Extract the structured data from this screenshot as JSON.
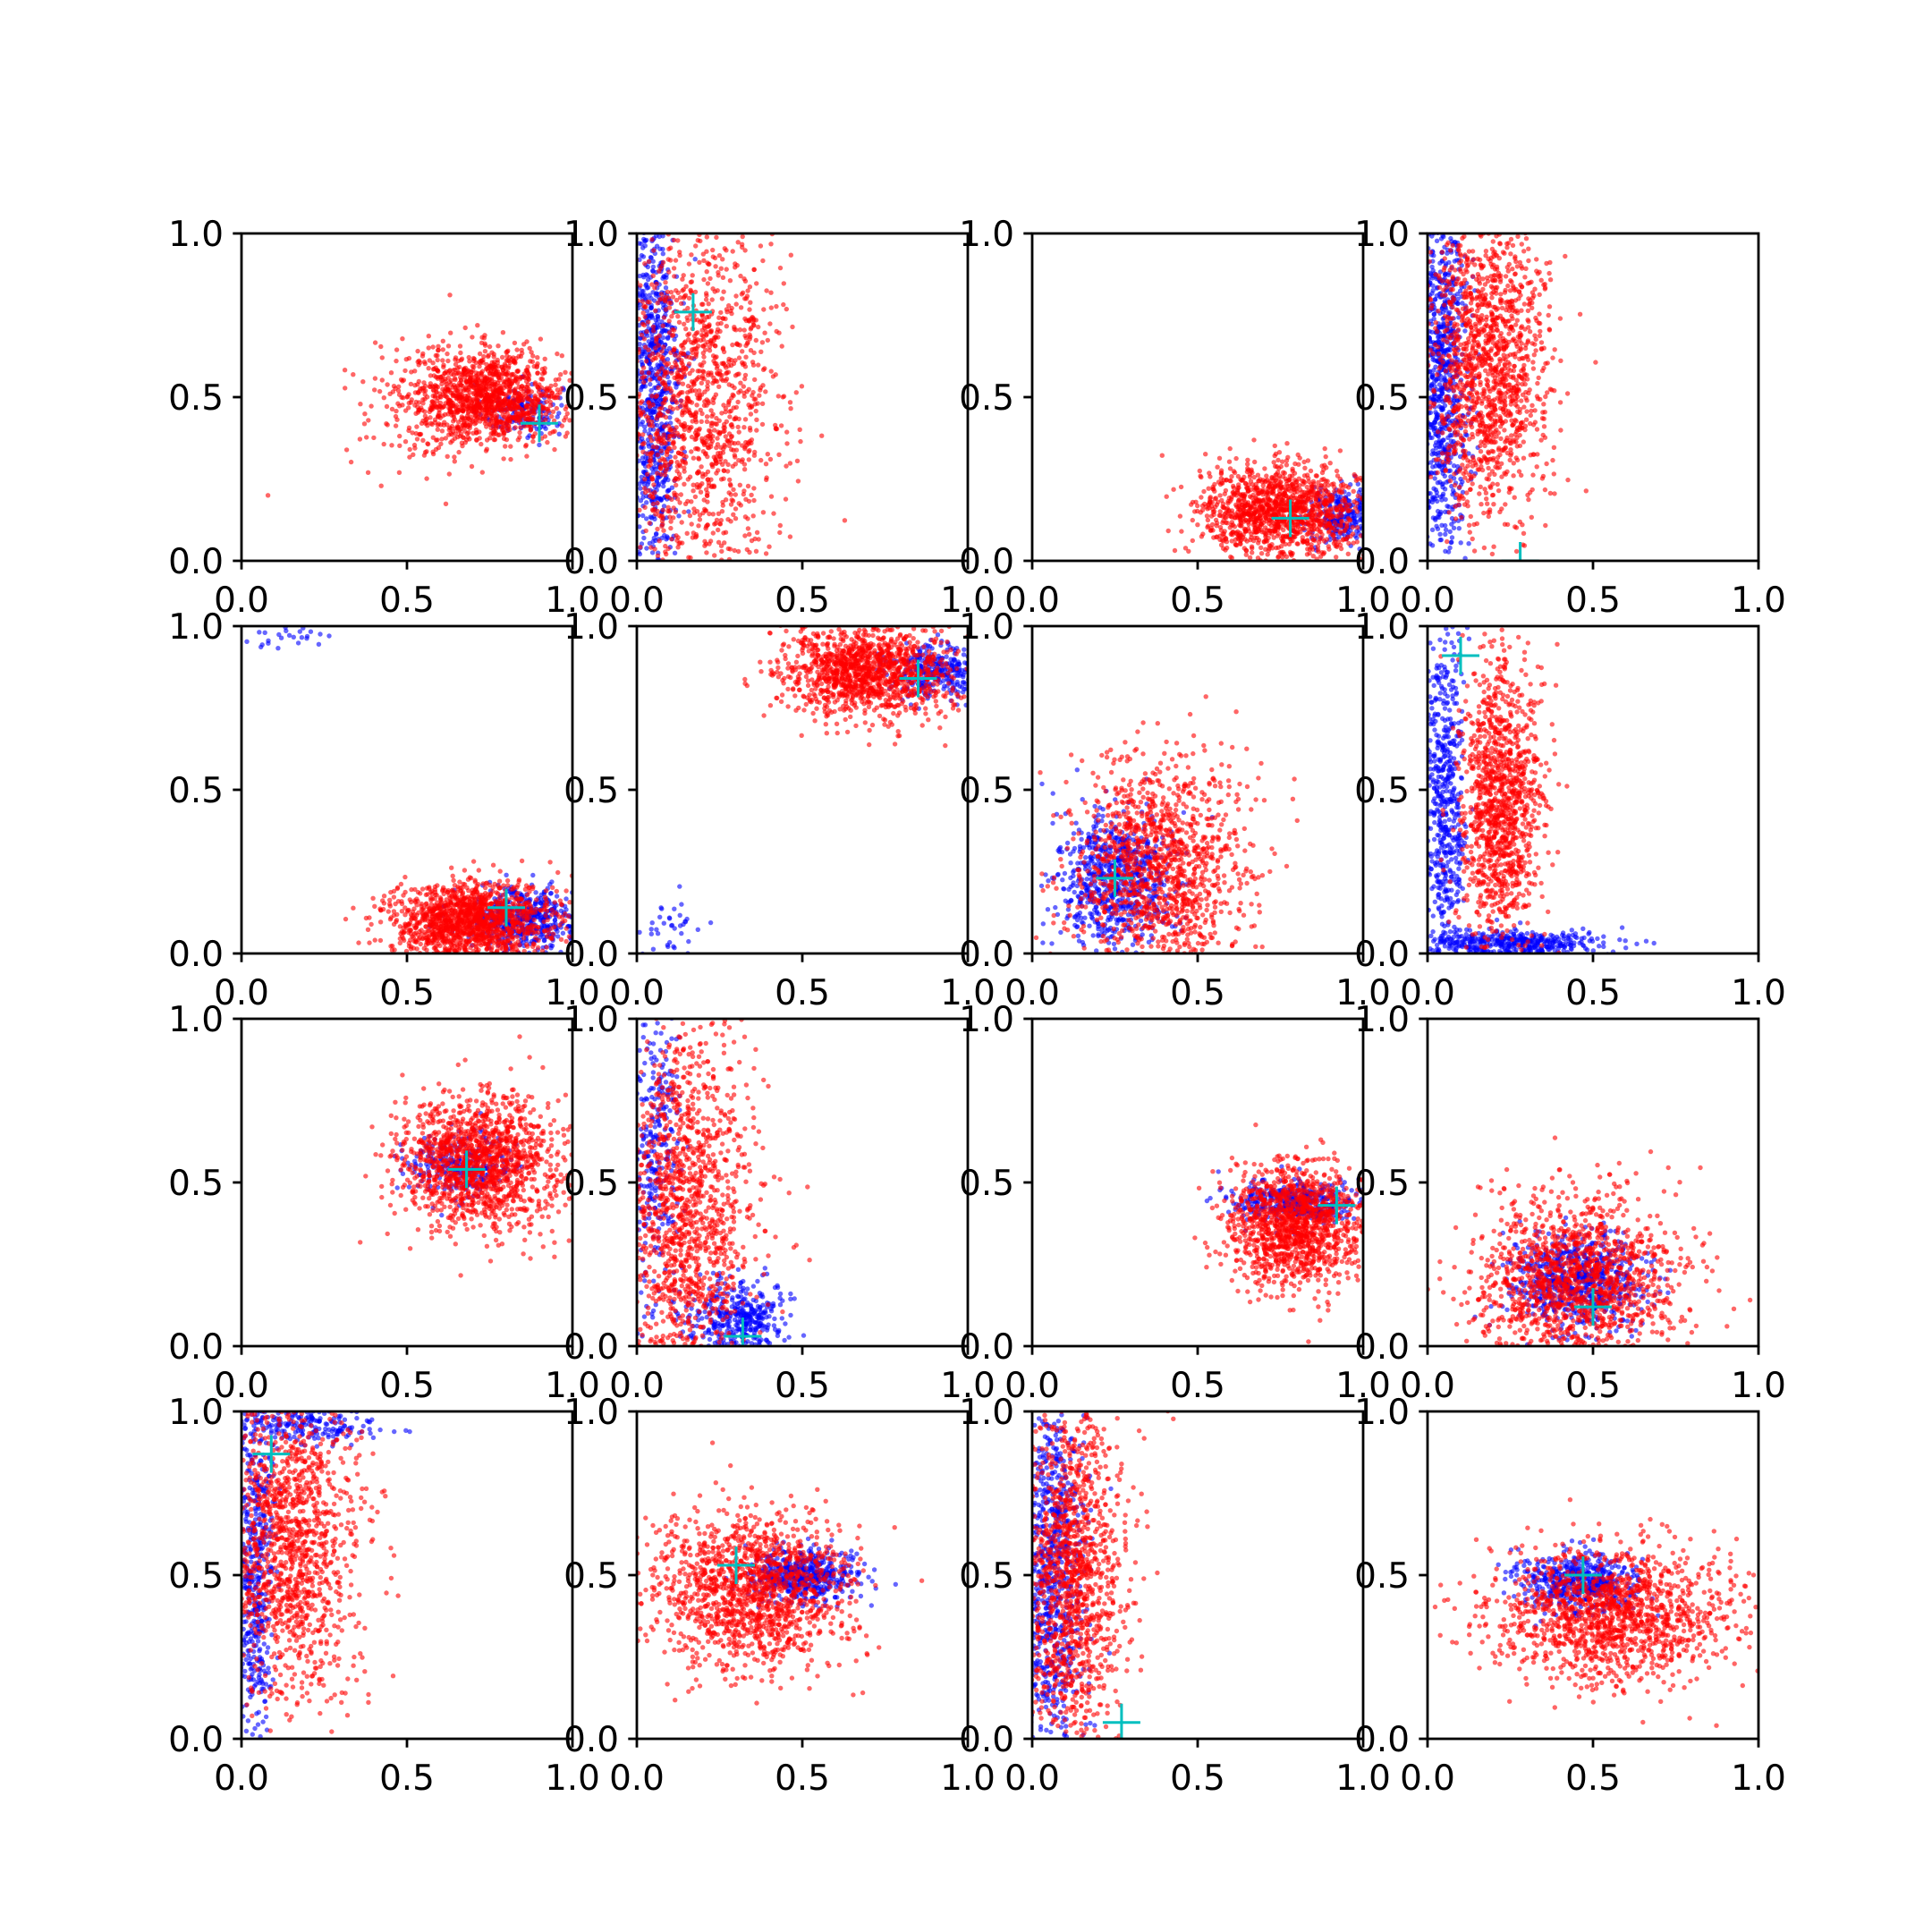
{
  "chart_data": {
    "type": "scatter",
    "layout": {
      "rows": 4,
      "cols": 4
    },
    "xlim": [
      0.0,
      1.0
    ],
    "ylim": [
      0.0,
      1.0
    ],
    "xticks": [
      0.0,
      0.5,
      1.0
    ],
    "yticks": [
      0.0,
      0.5,
      1.0
    ],
    "xtick_labels": [
      "0.0",
      "0.5",
      "1.0"
    ],
    "ytick_labels": [
      "0.0",
      "0.5",
      "1.0"
    ],
    "grid": false,
    "colors": {
      "series_a": "#0000ff",
      "series_b": "#ff0000",
      "marker": "#00bfbf"
    },
    "panels": [
      {
        "marker": [
          0.9,
          0.42
        ],
        "series_b": [
          {
            "center": [
              0.75,
              0.5
            ],
            "spread": [
              0.11,
              0.07
            ],
            "count": 1200
          },
          {
            "center": [
              0.55,
              0.48
            ],
            "spread": [
              0.12,
              0.1
            ],
            "count": 150
          }
        ],
        "series_a": [
          {
            "center": [
              0.85,
              0.46
            ],
            "spread": [
              0.06,
              0.04
            ],
            "count": 150
          }
        ]
      },
      {
        "marker": [
          0.17,
          0.76
        ],
        "series_b": [
          {
            "center": [
              0.18,
              0.5
            ],
            "spread": [
              0.12,
              0.28
            ],
            "count": 1400
          }
        ],
        "series_a": [
          {
            "center": [
              0.05,
              0.5
            ],
            "spread": [
              0.04,
              0.3
            ],
            "count": 800
          }
        ]
      },
      {
        "marker": [
          0.78,
          0.13
        ],
        "series_b": [
          {
            "center": [
              0.75,
              0.15
            ],
            "spread": [
              0.12,
              0.07
            ],
            "count": 1300
          }
        ],
        "series_a": [
          {
            "center": [
              0.95,
              0.14
            ],
            "spread": [
              0.06,
              0.04
            ],
            "count": 250
          }
        ]
      },
      {
        "marker": [
          0.28,
          0.0
        ],
        "series_b": [
          {
            "center": [
              0.18,
              0.6
            ],
            "spread": [
              0.09,
              0.22
            ],
            "count": 1400
          }
        ],
        "series_a": [
          {
            "center": [
              0.04,
              0.55
            ],
            "spread": [
              0.04,
              0.3
            ],
            "count": 900
          }
        ]
      },
      {
        "marker": [
          0.8,
          0.14
        ],
        "series_b": [
          {
            "center": [
              0.68,
              0.1
            ],
            "spread": [
              0.12,
              0.06
            ],
            "count": 1400
          }
        ],
        "series_a": [
          {
            "center": [
              0.85,
              0.1
            ],
            "spread": [
              0.08,
              0.05
            ],
            "count": 500
          },
          {
            "center": [
              0.1,
              0.97
            ],
            "spread": [
              0.08,
              0.02
            ],
            "count": 25
          }
        ]
      },
      {
        "marker": [
          0.85,
          0.84
        ],
        "series_b": [
          {
            "center": [
              0.7,
              0.86
            ],
            "spread": [
              0.13,
              0.07
            ],
            "count": 1300
          }
        ],
        "series_a": [
          {
            "center": [
              0.9,
              0.86
            ],
            "spread": [
              0.07,
              0.04
            ],
            "count": 300
          },
          {
            "center": [
              0.1,
              0.07
            ],
            "spread": [
              0.05,
              0.05
            ],
            "count": 40
          }
        ]
      },
      {
        "marker": [
          0.25,
          0.23
        ],
        "series_b": [
          {
            "center": [
              0.38,
              0.25
            ],
            "spread": [
              0.13,
              0.17
            ],
            "count": 1300
          }
        ],
        "series_a": [
          {
            "center": [
              0.25,
              0.22
            ],
            "spread": [
              0.09,
              0.1
            ],
            "count": 700
          }
        ]
      },
      {
        "marker": [
          0.1,
          0.91
        ],
        "series_b": [
          {
            "center": [
              0.22,
              0.45
            ],
            "spread": [
              0.06,
              0.22
            ],
            "count": 1200
          }
        ],
        "series_a": [
          {
            "center": [
              0.05,
              0.45
            ],
            "spread": [
              0.03,
              0.3
            ],
            "count": 600
          },
          {
            "center": [
              0.25,
              0.03
            ],
            "spread": [
              0.14,
              0.02
            ],
            "count": 400
          }
        ]
      },
      {
        "marker": [
          0.68,
          0.54
        ],
        "series_b": [
          {
            "center": [
              0.72,
              0.56
            ],
            "spread": [
              0.12,
              0.1
            ],
            "count": 1400
          }
        ],
        "series_a": [
          {
            "center": [
              0.65,
              0.55
            ],
            "spread": [
              0.08,
              0.05
            ],
            "count": 250
          }
        ]
      },
      {
        "marker": [
          0.32,
          0.03
        ],
        "series_b": [
          {
            "center": [
              0.15,
              0.4
            ],
            "spread": [
              0.1,
              0.3
            ],
            "count": 1400
          }
        ],
        "series_a": [
          {
            "center": [
              0.3,
              0.08
            ],
            "spread": [
              0.08,
              0.06
            ],
            "count": 400
          },
          {
            "center": [
              0.06,
              0.6
            ],
            "spread": [
              0.04,
              0.25
            ],
            "count": 300
          }
        ]
      },
      {
        "marker": [
          0.92,
          0.43
        ],
        "series_b": [
          {
            "center": [
              0.8,
              0.37
            ],
            "spread": [
              0.1,
              0.09
            ],
            "count": 1300
          }
        ],
        "series_a": [
          {
            "center": [
              0.8,
              0.44
            ],
            "spread": [
              0.1,
              0.03
            ],
            "count": 400
          }
        ]
      },
      {
        "marker": [
          0.5,
          0.12
        ],
        "series_b": [
          {
            "center": [
              0.45,
              0.2
            ],
            "spread": [
              0.15,
              0.13
            ],
            "count": 1400
          }
        ],
        "series_a": [
          {
            "center": [
              0.45,
              0.2
            ],
            "spread": [
              0.1,
              0.07
            ],
            "count": 700
          }
        ]
      },
      {
        "marker": [
          0.09,
          0.87
        ],
        "series_b": [
          {
            "center": [
              0.15,
              0.6
            ],
            "spread": [
              0.1,
              0.25
            ],
            "count": 1300
          }
        ],
        "series_a": [
          {
            "center": [
              0.04,
              0.5
            ],
            "spread": [
              0.03,
              0.3
            ],
            "count": 500
          },
          {
            "center": [
              0.2,
              0.96
            ],
            "spread": [
              0.1,
              0.03
            ],
            "count": 200
          }
        ]
      },
      {
        "marker": [
          0.3,
          0.53
        ],
        "series_b": [
          {
            "center": [
              0.35,
              0.46
            ],
            "spread": [
              0.15,
              0.12
            ],
            "count": 1400
          }
        ],
        "series_a": [
          {
            "center": [
              0.5,
              0.5
            ],
            "spread": [
              0.08,
              0.04
            ],
            "count": 500
          }
        ]
      },
      {
        "marker": [
          0.27,
          0.05
        ],
        "series_b": [
          {
            "center": [
              0.12,
              0.5
            ],
            "spread": [
              0.08,
              0.28
            ],
            "count": 1300
          }
        ],
        "series_a": [
          {
            "center": [
              0.06,
              0.5
            ],
            "spread": [
              0.05,
              0.3
            ],
            "count": 800
          }
        ]
      },
      {
        "marker": [
          0.47,
          0.5
        ],
        "series_b": [
          {
            "center": [
              0.55,
              0.38
            ],
            "spread": [
              0.18,
              0.1
            ],
            "count": 1400
          }
        ],
        "series_a": [
          {
            "center": [
              0.45,
              0.48
            ],
            "spread": [
              0.09,
              0.04
            ],
            "count": 500
          }
        ]
      }
    ]
  }
}
